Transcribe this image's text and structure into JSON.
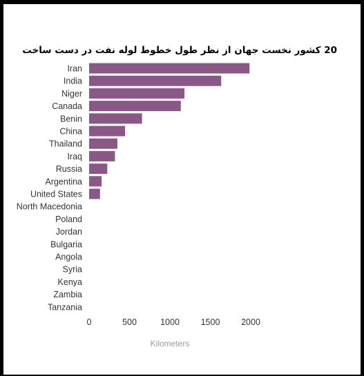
{
  "chart_data": {
    "type": "bar",
    "orientation": "horizontal",
    "title": "20 کشور نخست جهان از نظر طول خطوط لوله نفت در دست ساخت",
    "xlabel": "Kilometers",
    "ylabel": "",
    "xlim": [
      0,
      2000
    ],
    "xticks": [
      "0",
      "500",
      "1000",
      "1500",
      "2000"
    ],
    "grid": false,
    "legend": "none",
    "bar_color": "#8a5887",
    "categories": [
      "Iran",
      "India",
      "Niger",
      "Canada",
      "Benin",
      "China",
      "Thailand",
      "Iraq",
      "Russia",
      "Argentina",
      "United States",
      "North Macedonia",
      "Poland",
      "Jordan",
      "Bulgaria",
      "Angola",
      "Syria",
      "Kenya",
      "Zambia",
      "Tanzania"
    ],
    "values": [
      1985,
      1635,
      1180,
      1135,
      655,
      445,
      350,
      320,
      225,
      155,
      135,
      0,
      0,
      0,
      0,
      0,
      0,
      0,
      0,
      0
    ]
  }
}
